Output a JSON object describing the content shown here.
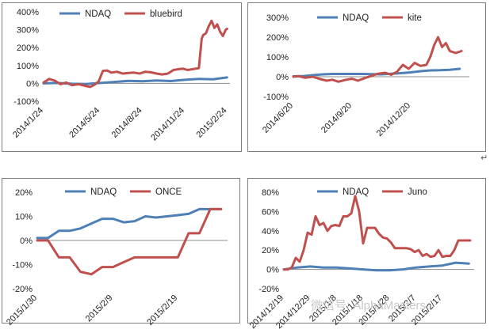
{
  "colors": {
    "ndaq": "#4e7fb5",
    "stock": "#c0504d"
  },
  "watermark": {
    "text": "微信号: AlphaMasters"
  },
  "side_mark": "↵",
  "chart_data": [
    {
      "type": "line",
      "id": "bluebird",
      "title": "",
      "xlabel": "",
      "ylabel": "",
      "ylim": [
        -100,
        400
      ],
      "y_ticks": [
        -100,
        0,
        100,
        200,
        300,
        400
      ],
      "y_tick_labels": [
        "-100%",
        "0%",
        "100%",
        "200%",
        "300%",
        "400%"
      ],
      "x_ticks": [
        0,
        4,
        7,
        10,
        13
      ],
      "x_tick_labels": [
        "2014/1/24",
        "2014/5/24",
        "2014/8/24",
        "2014/11/24",
        "2015/2/24"
      ],
      "legend": [
        "NDAQ",
        "bluebird"
      ],
      "legend_position": "top",
      "series": [
        {
          "name": "NDAQ",
          "color": "ndaq",
          "x": [
            0,
            1,
            2,
            3,
            4,
            5,
            6,
            7,
            8,
            9,
            10,
            11,
            12,
            13
          ],
          "y": [
            0,
            2,
            -2,
            -4,
            2,
            8,
            14,
            12,
            16,
            13,
            20,
            25,
            23,
            33
          ]
        },
        {
          "name": "bluebird",
          "color": "stock",
          "x": [
            0,
            0.4,
            0.8,
            1.2,
            1.6,
            2,
            2.5,
            3,
            3.3,
            3.6,
            3.9,
            4.2,
            4.5,
            4.8,
            5.2,
            5.6,
            6,
            6.4,
            6.8,
            7.2,
            7.6,
            8,
            8.4,
            8.8,
            9.2,
            9.6,
            9.9,
            10.2,
            10.6,
            11,
            11.2,
            11.3,
            11.5,
            11.7,
            11.9,
            12.1,
            12.3,
            12.5,
            12.7,
            12.9,
            13
          ],
          "y": [
            5,
            25,
            15,
            -5,
            5,
            -10,
            -5,
            -15,
            -20,
            -8,
            10,
            70,
            72,
            60,
            65,
            55,
            58,
            60,
            55,
            65,
            62,
            55,
            50,
            55,
            75,
            80,
            82,
            75,
            80,
            85,
            250,
            270,
            280,
            320,
            350,
            310,
            330,
            290,
            265,
            300,
            305
          ]
        }
      ]
    },
    {
      "type": "line",
      "id": "kite",
      "title": "",
      "xlabel": "",
      "ylabel": "",
      "ylim": [
        -100,
        300
      ],
      "y_ticks": [
        -100,
        0,
        100,
        200,
        300
      ],
      "y_tick_labels": [
        "-100%",
        "0%",
        "100%",
        "200%",
        "300%"
      ],
      "x_ticks": [
        0,
        3,
        6
      ],
      "x_tick_labels": [
        "2014/6/20",
        "2014/9/20",
        "2014/12/20"
      ],
      "legend": [
        "NDAQ",
        "kite"
      ],
      "legend_position": "top",
      "series": [
        {
          "name": "NDAQ",
          "color": "ndaq",
          "x": [
            0,
            0.5,
            1,
            1.5,
            2,
            2.5,
            3,
            3.5,
            4,
            4.5,
            5,
            5.5,
            6,
            6.5,
            7,
            7.5,
            8,
            8.5
          ],
          "y": [
            2,
            3,
            8,
            12,
            14,
            14,
            14,
            14,
            13,
            12,
            15,
            18,
            22,
            28,
            32,
            33,
            35,
            40
          ]
        },
        {
          "name": "kite",
          "color": "stock",
          "x": [
            0,
            0.3,
            0.6,
            1,
            1.3,
            1.7,
            2,
            2.3,
            2.7,
            3,
            3.3,
            3.7,
            4,
            4.3,
            4.7,
            5,
            5.3,
            5.6,
            5.9,
            6.2,
            6.5,
            6.8,
            7,
            7.2,
            7.4,
            7.6,
            7.8,
            8,
            8.3,
            8.6
          ],
          "y": [
            0,
            3,
            -5,
            0,
            -10,
            -20,
            -15,
            -25,
            -15,
            -10,
            -20,
            -5,
            5,
            15,
            20,
            10,
            25,
            60,
            40,
            70,
            55,
            60,
            100,
            160,
            200,
            150,
            170,
            130,
            120,
            130
          ]
        }
      ]
    },
    {
      "type": "line",
      "id": "once",
      "title": "",
      "xlabel": "",
      "ylabel": "",
      "ylim": [
        -20,
        20
      ],
      "y_ticks": [
        -20,
        -10,
        0,
        10,
        20
      ],
      "y_tick_labels": [
        "-20%",
        "-10%",
        "0%",
        "10%",
        "20%"
      ],
      "x_ticks": [
        0,
        7,
        13
      ],
      "x_tick_labels": [
        "2015/1/30",
        "2015/2/9",
        "2015/2/19"
      ],
      "legend": [
        "NDAQ",
        "ONCE"
      ],
      "legend_position": "top",
      "series": [
        {
          "name": "NDAQ",
          "color": "ndaq",
          "x": [
            0,
            1,
            2,
            3,
            4,
            5,
            6,
            7,
            8,
            9,
            10,
            11,
            12,
            13,
            14,
            15,
            16,
            17
          ],
          "y": [
            1,
            1,
            4,
            4,
            5,
            7,
            9,
            9,
            7.5,
            8,
            10,
            9.5,
            10,
            10.5,
            11,
            13,
            13,
            13
          ]
        },
        {
          "name": "ONCE",
          "color": "stock",
          "x": [
            0,
            1,
            2,
            3,
            4,
            5,
            6,
            7,
            8,
            9,
            10,
            11,
            12,
            13,
            14,
            15,
            16,
            17
          ],
          "y": [
            0,
            0,
            -7,
            -7,
            -13,
            -14,
            -11,
            -11,
            -9,
            -7,
            -7,
            -7,
            -7,
            -7,
            3,
            3,
            13,
            13
          ]
        }
      ]
    },
    {
      "type": "line",
      "id": "juno",
      "title": "",
      "xlabel": "",
      "ylabel": "",
      "ylim": [
        -20,
        80
      ],
      "y_ticks": [
        -20,
        0,
        20,
        40,
        60,
        80
      ],
      "y_tick_labels": [
        "-20%",
        "0%",
        "20%",
        "40%",
        "60%",
        "80%"
      ],
      "x_ticks": [
        0,
        2,
        4,
        6,
        8,
        10,
        12
      ],
      "x_tick_labels": [
        "2014/12/19",
        "2014/12/29",
        "2015/1/8",
        "2015/1/18",
        "2015/1/28",
        "2015/2/7",
        "2015/2/17"
      ],
      "legend": [
        "NDAQ",
        "Juno"
      ],
      "legend_position": "top",
      "series": [
        {
          "name": "NDAQ",
          "color": "ndaq",
          "x": [
            0,
            1,
            2,
            3,
            4,
            5,
            6,
            7,
            8,
            9,
            10,
            11,
            12,
            13,
            14
          ],
          "y": [
            0,
            2,
            3,
            2,
            2,
            1,
            0,
            -1,
            -1,
            0,
            2,
            3,
            4,
            7,
            6
          ]
        },
        {
          "name": "Juno",
          "color": "stock",
          "x": [
            0,
            0.3,
            0.6,
            0.9,
            1.2,
            1.5,
            1.8,
            2.1,
            2.4,
            2.7,
            3,
            3.3,
            3.6,
            3.9,
            4.2,
            4.5,
            4.8,
            5.1,
            5.4,
            5.7,
            6,
            6.3,
            6.6,
            6.9,
            7.2,
            7.5,
            7.8,
            8.1,
            8.4,
            8.7,
            9,
            9.3,
            9.6,
            9.9,
            10.2,
            10.5,
            10.8,
            11.1,
            11.4,
            11.7,
            12,
            12.3,
            12.6,
            12.9,
            13.2,
            13.5,
            13.8,
            14.1
          ],
          "y": [
            0,
            0,
            2,
            12,
            8,
            20,
            38,
            36,
            55,
            46,
            48,
            40,
            45,
            46,
            45,
            55,
            55,
            58,
            76,
            60,
            27,
            43,
            43,
            43,
            37,
            33,
            32,
            28,
            22,
            22,
            22,
            22,
            21,
            18,
            20,
            14,
            16,
            13,
            14,
            20,
            13,
            14,
            14,
            20,
            30,
            30,
            30,
            30
          ]
        }
      ]
    }
  ]
}
